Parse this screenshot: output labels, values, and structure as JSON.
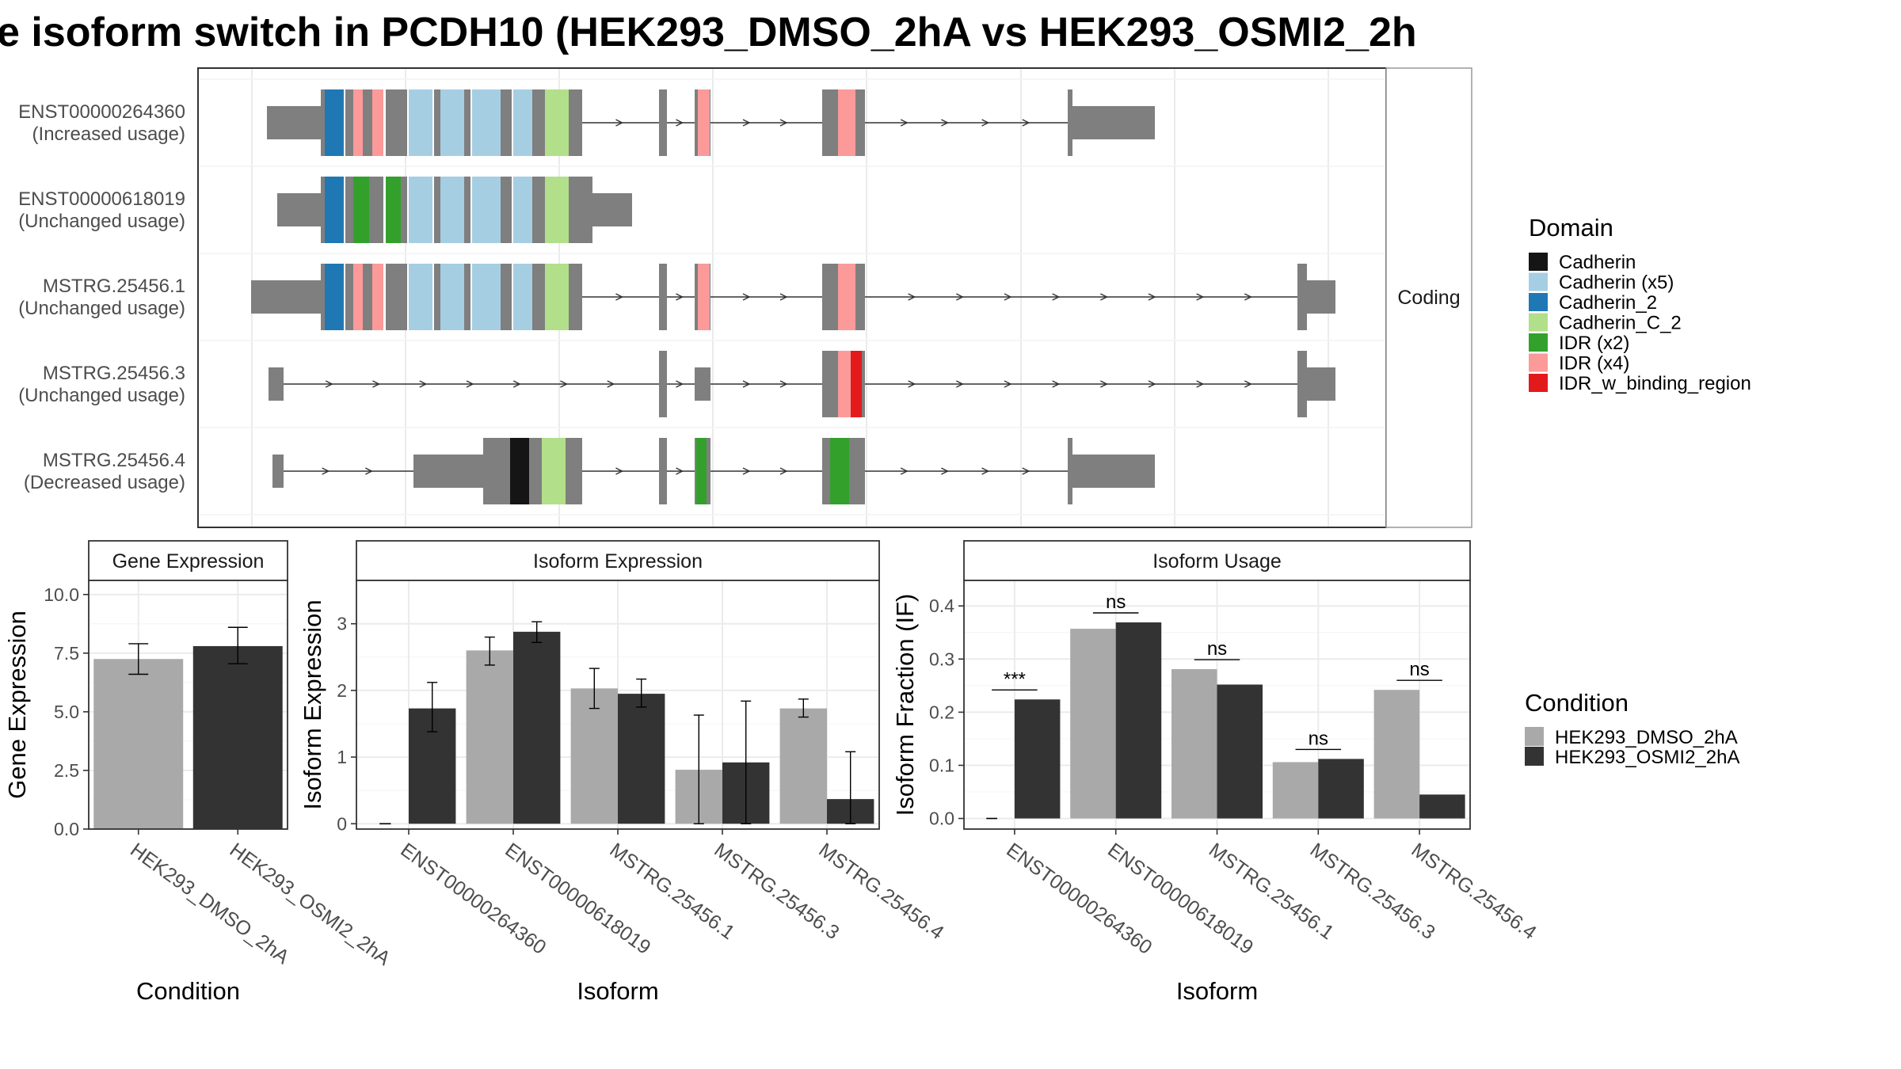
{
  "title": "e isoform switch in PCDH10 (HEK293_DMSO_2hA vs HEK293_OSMI2_2h",
  "colors": {
    "exon": "#7f7f7f",
    "Cadherin": "#151515",
    "Cadherin (x5)": "#a6cee3",
    "Cadherin_2": "#1f78b4",
    "Cadherin_C_2": "#b2df8a",
    "IDR (x2)": "#33a02c",
    "IDR (x4)": "#fb9a99",
    "IDR_w_binding_region": "#e31a1c",
    "HEK293_DMSO_2hA": "#a9a9a9",
    "HEK293_OSMI2_2hA": "#333333",
    "panel_border": "#333333",
    "grid": "#ebebeb"
  },
  "structure": {
    "facet_label": "Coding",
    "isoforms": [
      {
        "id": "ENST00000264360",
        "usage": "(Increased usage)"
      },
      {
        "id": "ENST00000618019",
        "usage": "(Unchanged usage)"
      },
      {
        "id": "MSTRG.25456.1",
        "usage": "(Unchanged usage)"
      },
      {
        "id": "MSTRG.25456.3",
        "usage": "(Unchanged usage)"
      },
      {
        "id": "MSTRG.25456.4",
        "usage": "(Decreased usage)"
      }
    ]
  },
  "legend_domain": {
    "title": "Domain",
    "items": [
      "Cadherin",
      "Cadherin (x5)",
      "Cadherin_2",
      "Cadherin_C_2",
      "IDR (x2)",
      "IDR (x4)",
      "IDR_w_binding_region"
    ]
  },
  "legend_condition": {
    "title": "Condition",
    "items": [
      "HEK293_DMSO_2hA",
      "HEK293_OSMI2_2hA"
    ]
  },
  "chart_data": [
    {
      "type": "bar",
      "title": "Gene Expression",
      "xlabel": "Condition",
      "ylabel": "Gene Expression",
      "categories": [
        "HEK293_DMSO_2hA",
        "HEK293_OSMI2_2hA"
      ],
      "values": [
        7.25,
        7.8
      ],
      "errors": [
        [
          6.6,
          7.9
        ],
        [
          7.05,
          8.6
        ]
      ],
      "ylim": [
        0,
        10.6
      ],
      "yticks": [
        0.0,
        2.5,
        5.0,
        7.5,
        10.0
      ],
      "ytick_labels": [
        "0.0",
        "2.5",
        "5.0",
        "7.5",
        "10.0"
      ],
      "grid": true
    },
    {
      "type": "bar",
      "title": "Isoform Expression",
      "xlabel": "Isoform",
      "ylabel": "Isoform Expression",
      "categories": [
        "ENST00000264360",
        "ENST00000618019",
        "MSTRG.25456.1",
        "MSTRG.25456.3",
        "MSTRG.25456.4"
      ],
      "series": [
        {
          "name": "HEK293_DMSO_2hA",
          "values": [
            0.0,
            2.6,
            2.03,
            0.81,
            1.73
          ],
          "errors": [
            [
              0,
              0
            ],
            [
              2.38,
              2.8
            ],
            [
              1.73,
              2.33
            ],
            [
              0,
              1.63
            ],
            [
              1.6,
              1.87
            ]
          ]
        },
        {
          "name": "HEK293_OSMI2_2hA",
          "values": [
            1.73,
            2.88,
            1.95,
            0.92,
            0.37
          ],
          "errors": [
            [
              1.38,
              2.12
            ],
            [
              2.72,
              3.03
            ],
            [
              1.75,
              2.17
            ],
            [
              0,
              1.84
            ],
            [
              0,
              1.08
            ]
          ]
        }
      ],
      "ylim": [
        -0.08,
        3.65
      ],
      "yticks": [
        0,
        1,
        2,
        3
      ],
      "ytick_labels": [
        "0",
        "1",
        "2",
        "3"
      ],
      "grid": true
    },
    {
      "type": "bar",
      "title": "Isoform Usage",
      "xlabel": "Isoform",
      "ylabel": "Isoform Fraction (IF)",
      "categories": [
        "ENST00000264360",
        "ENST00000618019",
        "MSTRG.25456.1",
        "MSTRG.25456.3",
        "MSTRG.25456.4"
      ],
      "series": [
        {
          "name": "HEK293_DMSO_2hA",
          "values": [
            0.0,
            0.357,
            0.281,
            0.106,
            0.242
          ]
        },
        {
          "name": "HEK293_OSMI2_2hA",
          "values": [
            0.224,
            0.369,
            0.252,
            0.112,
            0.045
          ]
        }
      ],
      "significance": [
        "***",
        "ns",
        "ns",
        "ns",
        "ns"
      ],
      "ylim": [
        -0.02,
        0.448
      ],
      "yticks": [
        0.0,
        0.1,
        0.2,
        0.3,
        0.4
      ],
      "ytick_labels": [
        "0.0",
        "0.1",
        "0.2",
        "0.3",
        "0.4"
      ],
      "grid": true
    }
  ]
}
